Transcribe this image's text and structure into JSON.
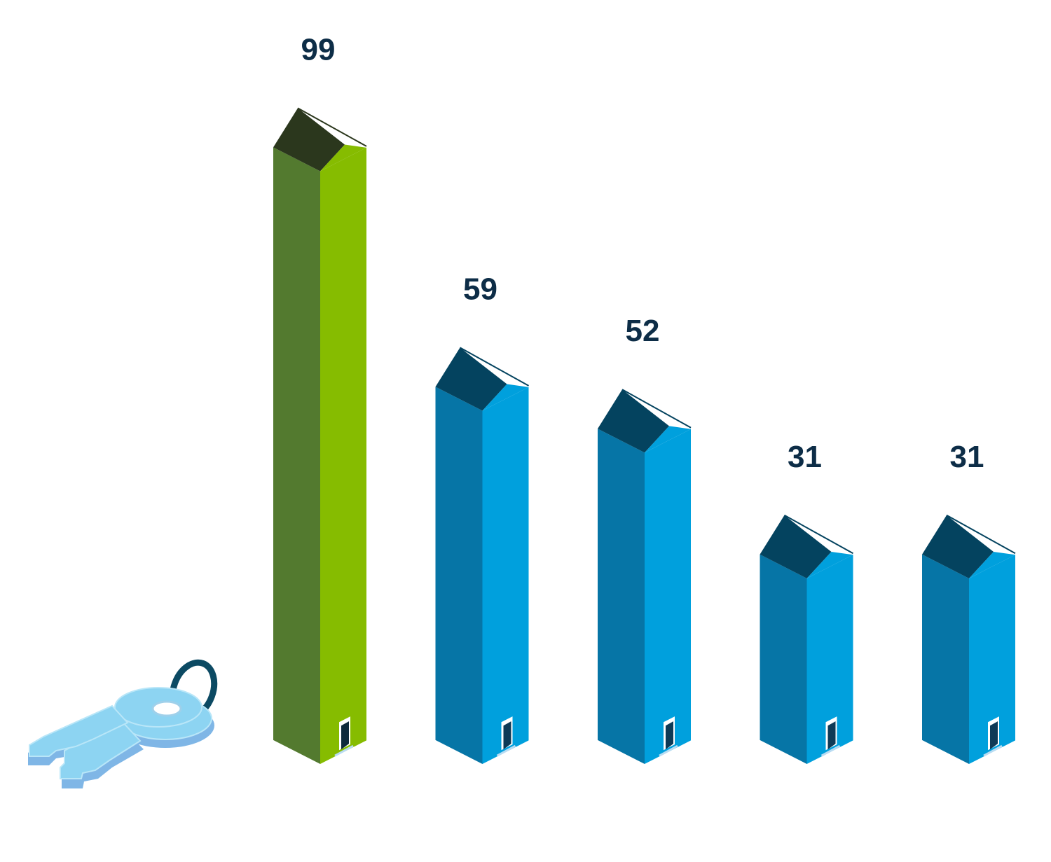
{
  "chart_data": {
    "type": "bar",
    "style": "isometric-house-towers",
    "categories": [
      "",
      "",
      "",
      "",
      ""
    ],
    "values": [
      99,
      59,
      52,
      31,
      31
    ],
    "highlight_index": 0,
    "title": "",
    "xlabel": "",
    "ylabel": "",
    "grid": false,
    "legend": "none",
    "colors": {
      "highlight": {
        "left": "#537a2f",
        "right": "#86bc00",
        "roof": "#2b371d",
        "door": "#0e2a3c"
      },
      "normal": {
        "left": "#0675a6",
        "right": "#00a0dd",
        "roof": "#04435f",
        "door": "#0e3a56"
      },
      "label": "#0d2d47",
      "keys": "#8dd4f2"
    }
  },
  "decoration": {
    "icon": "house-keys-icon"
  }
}
